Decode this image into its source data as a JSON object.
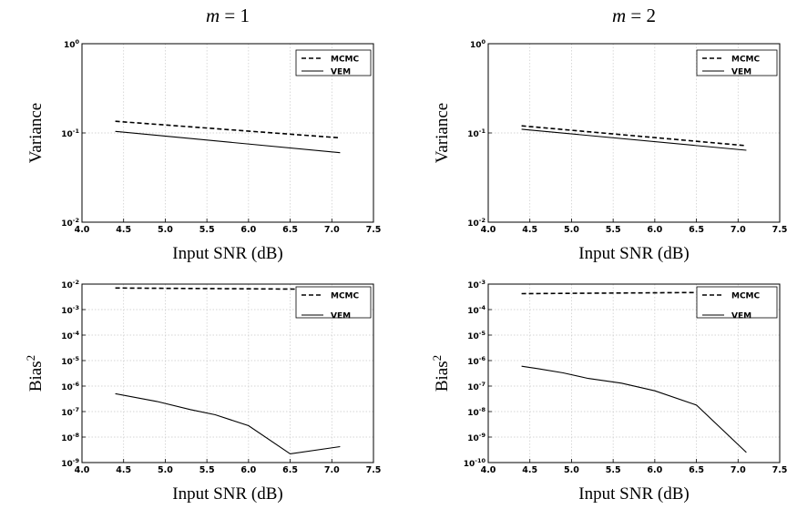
{
  "chart_data": [
    {
      "type": "line",
      "title_var": "m",
      "title_eq": " = ",
      "title_val": "1",
      "ylabel": "Variance",
      "xlabel": "Input SNR (dB)",
      "yscale": "log",
      "xlim": [
        4.0,
        7.5
      ],
      "ylim_exp": [
        -2,
        0
      ],
      "grid": true,
      "legend_position": "top-right",
      "xticks": [
        "4.0",
        "4.5",
        "5.0",
        "5.5",
        "6.0",
        "6.5",
        "7.0",
        "7.5"
      ],
      "yticks": [
        {
          "base": "10",
          "exp": "0"
        },
        {
          "base": "10",
          "exp": "-1"
        },
        {
          "base": "10",
          "exp": "-2"
        }
      ],
      "series": [
        {
          "name": "MCMC",
          "style": "dashed",
          "x": [
            4.4,
            7.1
          ],
          "y": [
            0.135,
            0.088
          ]
        },
        {
          "name": "VEM",
          "style": "solid",
          "x": [
            4.4,
            7.1
          ],
          "y": [
            0.104,
            0.06
          ]
        }
      ]
    },
    {
      "type": "line",
      "title_var": "m",
      "title_eq": " = ",
      "title_val": "2",
      "ylabel": "Variance",
      "xlabel": "Input SNR (dB)",
      "yscale": "log",
      "xlim": [
        4.0,
        7.5
      ],
      "ylim_exp": [
        -2,
        0
      ],
      "grid": true,
      "legend_position": "top-right",
      "xticks": [
        "4.0",
        "4.5",
        "5.0",
        "5.5",
        "6.0",
        "6.5",
        "7.0",
        "7.5"
      ],
      "yticks": [
        {
          "base": "10",
          "exp": "0"
        },
        {
          "base": "10",
          "exp": "-1"
        },
        {
          "base": "10",
          "exp": "-2"
        }
      ],
      "series": [
        {
          "name": "MCMC",
          "style": "dashed",
          "x": [
            4.4,
            7.1
          ],
          "y": [
            0.12,
            0.072
          ]
        },
        {
          "name": "VEM",
          "style": "solid",
          "x": [
            4.4,
            7.1
          ],
          "y": [
            0.11,
            0.064
          ]
        }
      ]
    },
    {
      "type": "line",
      "ylabel_base": "Bias",
      "ylabel_sup": "2",
      "xlabel": "Input SNR (dB)",
      "yscale": "log",
      "xlim": [
        4.0,
        7.5
      ],
      "ylim_exp": [
        -9,
        -2
      ],
      "grid": true,
      "legend_position": "top-right",
      "xticks": [
        "4.0",
        "4.5",
        "5.0",
        "5.5",
        "6.0",
        "6.5",
        "7.0",
        "7.5"
      ],
      "yticks": [
        {
          "base": "10",
          "exp": "-2"
        },
        {
          "base": "10",
          "exp": "-3"
        },
        {
          "base": "10",
          "exp": "-4"
        },
        {
          "base": "10",
          "exp": "-5"
        },
        {
          "base": "10",
          "exp": "-6"
        },
        {
          "base": "10",
          "exp": "-7"
        },
        {
          "base": "10",
          "exp": "-8"
        },
        {
          "base": "10",
          "exp": "-9"
        }
      ],
      "series": [
        {
          "name": "MCMC",
          "style": "dashed",
          "x": [
            4.4,
            7.1
          ],
          "y": [
            0.007,
            0.0062
          ]
        },
        {
          "name": "VEM",
          "style": "solid",
          "x": [
            4.4,
            4.9,
            5.3,
            5.6,
            6.0,
            6.5,
            7.1
          ],
          "y": [
            5e-07,
            2.5e-07,
            1.2e-07,
            7.5e-08,
            2.8e-08,
            2.2e-09,
            4.2e-09
          ]
        }
      ]
    },
    {
      "type": "line",
      "ylabel_base": "Bias",
      "ylabel_sup": "2",
      "xlabel": "Input SNR (dB)",
      "yscale": "log",
      "xlim": [
        4.0,
        7.5
      ],
      "ylim_exp": [
        -10,
        -3
      ],
      "grid": true,
      "legend_position": "top-right",
      "xticks": [
        "4.0",
        "4.5",
        "5.0",
        "5.5",
        "6.0",
        "6.5",
        "7.0",
        "7.5"
      ],
      "yticks": [
        {
          "base": "10",
          "exp": "-3"
        },
        {
          "base": "10",
          "exp": "-4"
        },
        {
          "base": "10",
          "exp": "-5"
        },
        {
          "base": "10",
          "exp": "-6"
        },
        {
          "base": "10",
          "exp": "-7"
        },
        {
          "base": "10",
          "exp": "-8"
        },
        {
          "base": "10",
          "exp": "-9"
        },
        {
          "base": "10",
          "exp": "-10"
        }
      ],
      "series": [
        {
          "name": "MCMC",
          "style": "dashed",
          "x": [
            4.4,
            7.1
          ],
          "y": [
            0.00042,
            0.00048
          ]
        },
        {
          "name": "VEM",
          "style": "solid",
          "x": [
            4.4,
            4.6,
            4.9,
            5.2,
            5.6,
            6.0,
            6.5,
            7.1
          ],
          "y": [
            6e-07,
            4.8e-07,
            3.3e-07,
            2e-07,
            1.3e-07,
            6.5e-08,
            1.8e-08,
            2.5e-10
          ]
        }
      ]
    }
  ]
}
